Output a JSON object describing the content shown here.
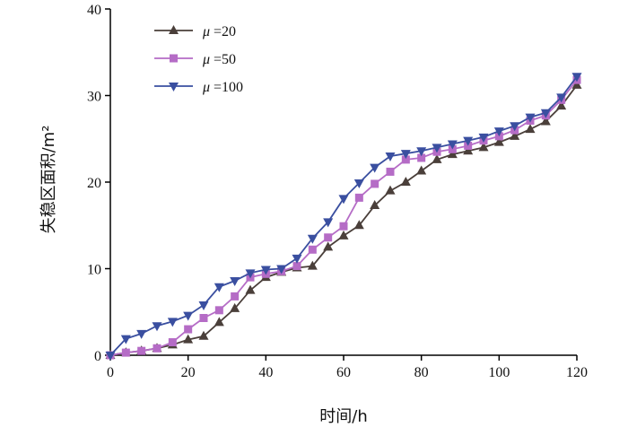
{
  "chart_data": {
    "type": "line",
    "title": "",
    "xlabel": "时间/h",
    "ylabel": "失稳区面积/m²",
    "xlim": [
      0,
      120
    ],
    "ylim": [
      0,
      40
    ],
    "xticks": [
      0,
      20,
      40,
      60,
      80,
      100,
      120
    ],
    "yticks": [
      0,
      10,
      20,
      30,
      40
    ],
    "grid": false,
    "legend_position": "top-left",
    "legend_symbol": "μ",
    "series": [
      {
        "name": "=20",
        "color": "#4a3f3a",
        "marker": "triangle-up",
        "x": [
          0,
          4,
          8,
          12,
          16,
          20,
          24,
          28,
          32,
          36,
          40,
          44,
          48,
          52,
          56,
          60,
          64,
          68,
          72,
          76,
          80,
          84,
          88,
          92,
          96,
          100,
          104,
          108,
          112,
          116,
          120
        ],
        "y": [
          0,
          0.3,
          0.5,
          0.8,
          1.2,
          1.8,
          2.2,
          3.8,
          5.4,
          7.5,
          9.0,
          9.6,
          10.1,
          10.3,
          12.5,
          13.8,
          15.0,
          17.3,
          19.0,
          20.0,
          21.3,
          22.6,
          23.2,
          23.6,
          24.0,
          24.6,
          25.3,
          26.1,
          27.0,
          28.8,
          31.2
        ]
      },
      {
        "name": "=50",
        "color": "#b56cc6",
        "marker": "square",
        "x": [
          0,
          4,
          8,
          12,
          16,
          20,
          24,
          28,
          32,
          36,
          40,
          44,
          48,
          52,
          56,
          60,
          64,
          68,
          72,
          76,
          80,
          84,
          88,
          92,
          96,
          100,
          104,
          108,
          112,
          116,
          120
        ],
        "y": [
          0,
          0.3,
          0.5,
          0.8,
          1.5,
          3.0,
          4.3,
          5.2,
          6.8,
          9.0,
          9.4,
          9.7,
          10.3,
          12.2,
          13.6,
          14.9,
          18.2,
          19.8,
          21.2,
          22.6,
          22.8,
          23.5,
          23.8,
          24.2,
          24.8,
          25.3,
          26.0,
          27.1,
          27.7,
          29.5,
          31.8
        ]
      },
      {
        "name": "=100",
        "color": "#3a4fa0",
        "marker": "triangle-down",
        "x": [
          0,
          4,
          8,
          12,
          16,
          20,
          24,
          28,
          32,
          36,
          40,
          44,
          48,
          52,
          56,
          60,
          64,
          68,
          72,
          76,
          80,
          84,
          88,
          92,
          96,
          100,
          104,
          108,
          112,
          116,
          120
        ],
        "y": [
          0,
          1.9,
          2.5,
          3.4,
          3.9,
          4.6,
          5.8,
          7.9,
          8.6,
          9.5,
          9.9,
          10.0,
          11.2,
          13.5,
          15.4,
          18.1,
          19.9,
          21.7,
          23.0,
          23.3,
          23.6,
          24.0,
          24.4,
          24.8,
          25.2,
          25.9,
          26.5,
          27.5,
          28.0,
          29.8,
          32.2
        ]
      }
    ]
  }
}
